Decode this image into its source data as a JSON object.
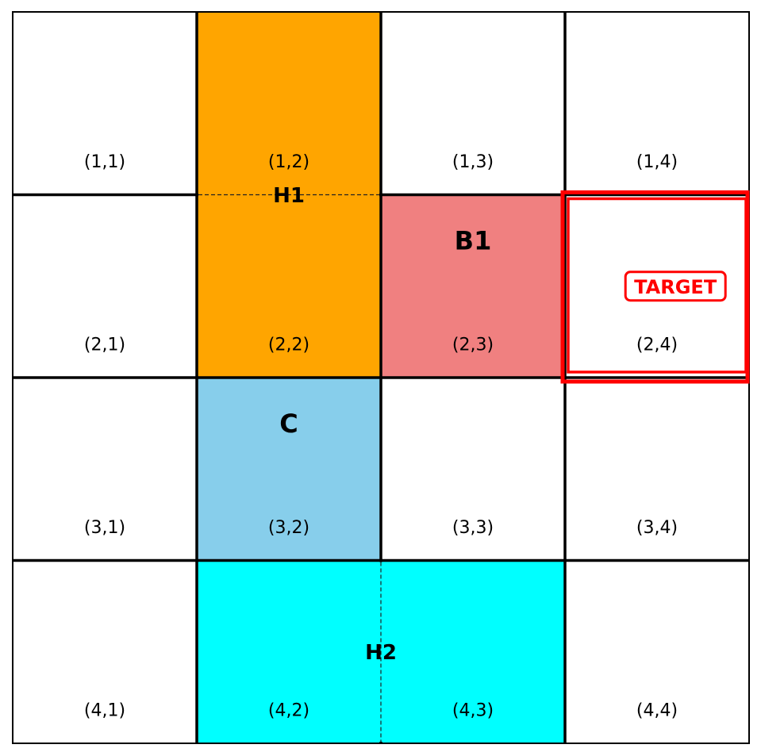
{
  "board": {
    "rows": 4,
    "cols": 4,
    "cells": [
      {
        "row": 1,
        "col": 1,
        "label": "(1,1)"
      },
      {
        "row": 1,
        "col": 2,
        "label": "(1,2)"
      },
      {
        "row": 1,
        "col": 3,
        "label": "(1,3)"
      },
      {
        "row": 1,
        "col": 4,
        "label": "(1,4)"
      },
      {
        "row": 2,
        "col": 1,
        "label": "(2,1)"
      },
      {
        "row": 2,
        "col": 2,
        "label": "(2,2)"
      },
      {
        "row": 2,
        "col": 3,
        "label": "(2,3)"
      },
      {
        "row": 2,
        "col": 4,
        "label": "(2,4)"
      },
      {
        "row": 3,
        "col": 1,
        "label": "(3,1)"
      },
      {
        "row": 3,
        "col": 2,
        "label": "(3,2)"
      },
      {
        "row": 3,
        "col": 3,
        "label": "(3,3)"
      },
      {
        "row": 3,
        "col": 4,
        "label": "(3,4)"
      },
      {
        "row": 4,
        "col": 1,
        "label": "(4,1)"
      },
      {
        "row": 4,
        "col": 2,
        "label": "(4,2)"
      },
      {
        "row": 4,
        "col": 3,
        "label": "(4,3)"
      },
      {
        "row": 4,
        "col": 4,
        "label": "(4,4)"
      }
    ]
  },
  "pieces": [
    {
      "id": "H1",
      "label": "H1",
      "color": "#ffa500",
      "cells": [
        [
          1,
          2
        ],
        [
          2,
          2
        ]
      ],
      "orientation": "vertical"
    },
    {
      "id": "B1",
      "label": "B1",
      "color": "#f08080",
      "cells": [
        [
          2,
          3
        ]
      ]
    },
    {
      "id": "C",
      "label": "C",
      "color": "#87ceeb",
      "cells": [
        [
          3,
          2
        ]
      ]
    },
    {
      "id": "H2",
      "label": "H2",
      "color": "#00ffff",
      "cells": [
        [
          4,
          2
        ],
        [
          4,
          3
        ]
      ],
      "orientation": "horizontal"
    }
  ],
  "target": {
    "label": "TARGET",
    "cell": [
      2,
      4
    ],
    "color": "#ff0000"
  }
}
